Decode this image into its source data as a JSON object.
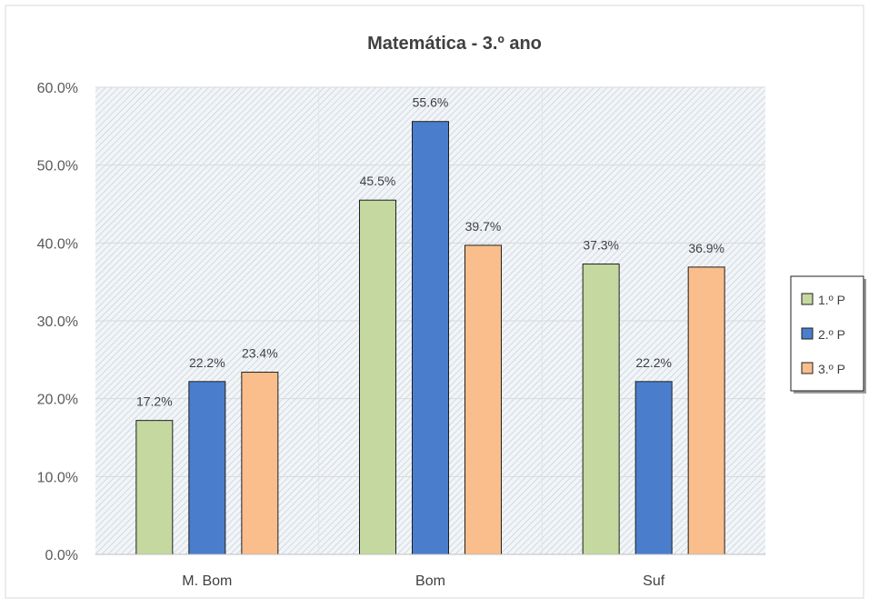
{
  "chart_data": {
    "type": "bar",
    "title": "Matemática - 3.º ano",
    "categories": [
      "M. Bom",
      "Bom",
      "Suf"
    ],
    "series": [
      {
        "name": "1.º P",
        "values": [
          17.2,
          45.5,
          37.3
        ],
        "color": "#C5D89F"
      },
      {
        "name": "2.º P",
        "values": [
          22.2,
          55.6,
          22.2
        ],
        "color": "#4A7ECC"
      },
      {
        "name": "3.º P",
        "values": [
          23.4,
          39.7,
          36.9
        ],
        "color": "#F9BE8C"
      }
    ],
    "ylim": [
      0,
      60
    ],
    "yticks": [
      "0.0%",
      "10.0%",
      "20.0%",
      "30.0%",
      "40.0%",
      "50.0%",
      "60.0%"
    ],
    "data_labels": [
      [
        "17.2%",
        "45.5%",
        "37.3%"
      ],
      [
        "22.2%",
        "55.6%",
        "22.2%"
      ],
      [
        "23.4%",
        "39.7%",
        "36.9%"
      ]
    ],
    "grid": true,
    "legend_position": "right",
    "plot_background": "diagonal hatch"
  }
}
